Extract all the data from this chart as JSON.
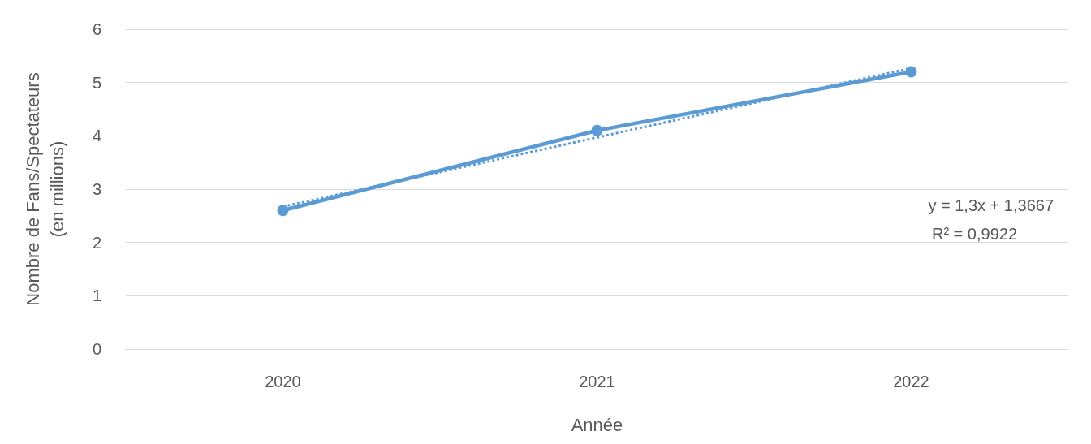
{
  "chart_data": {
    "type": "line",
    "xlabel": "Année",
    "ylabel": "Nombre de Fans/Spectateurs\n(en millions)",
    "categories": [
      "2020",
      "2021",
      "2022"
    ],
    "series": [
      {
        "color": "#5b9bd5",
        "values": [
          2.6,
          4.1,
          5.2
        ],
        "marker": "circle",
        "line_style": "solid"
      },
      {
        "type": "line",
        "color": "#5b9bd5",
        "values": [
          2.67,
          3.97,
          5.27
        ],
        "marker": "none",
        "line_style": "dotted"
      }
    ],
    "annotations": [
      "y = 1,3x + 1,3667",
      "R² = 0,9922"
    ],
    "ylim": [
      0,
      6
    ],
    "yticks": [
      0,
      1,
      2,
      3,
      4,
      5,
      6
    ],
    "grid": "y"
  }
}
